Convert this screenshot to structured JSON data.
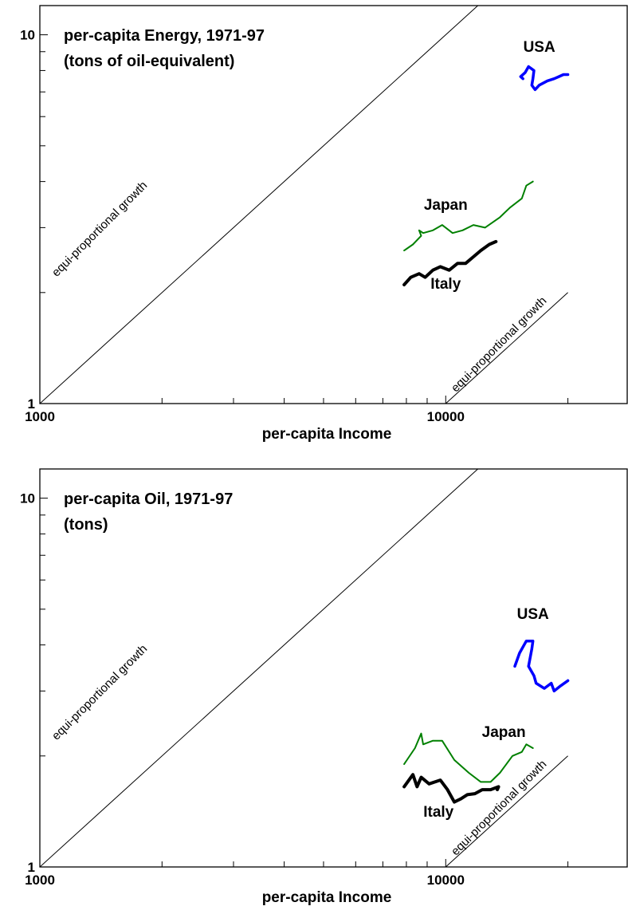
{
  "chart_data": [
    {
      "type": "line",
      "title": "per-capita Energy, 1971-97",
      "subtitle": "(tons of oil-equivalent)",
      "xlabel": "per-capita Income",
      "ylabel": "",
      "x_scale": "log",
      "y_scale": "log",
      "xlim": [
        1000,
        28000
      ],
      "ylim": [
        1,
        12
      ],
      "x_tick_labels": [
        {
          "value": 1000,
          "label": "1000"
        },
        {
          "value": 10000,
          "label": "10000"
        }
      ],
      "y_tick_labels": [
        {
          "value": 1,
          "label": "1"
        },
        {
          "value": 10,
          "label": "10"
        }
      ],
      "grid": false,
      "legend": "none",
      "series": [
        {
          "name": "USA",
          "color": "#0000ff",
          "x": [
            15500,
            15300,
            15700,
            16000,
            16500,
            16400,
            16300,
            16600,
            17000,
            17800,
            18500,
            19000,
            19500,
            20000
          ],
          "y": [
            7.6,
            7.7,
            7.9,
            8.2,
            8.0,
            7.6,
            7.3,
            7.1,
            7.3,
            7.5,
            7.6,
            7.7,
            7.8,
            7.8
          ]
        },
        {
          "name": "Japan",
          "color": "#008000",
          "x": [
            7900,
            8300,
            8700,
            8600,
            8800,
            9300,
            9800,
            10400,
            11000,
            11700,
            12500,
            13600,
            14400,
            15400,
            15800,
            16400
          ],
          "y": [
            2.6,
            2.7,
            2.85,
            2.95,
            2.9,
            2.95,
            3.05,
            2.9,
            2.95,
            3.05,
            3.0,
            3.2,
            3.4,
            3.6,
            3.9,
            4.0
          ]
        },
        {
          "name": "Italy",
          "color": "#000000",
          "x": [
            7900,
            8200,
            8600,
            8900,
            9300,
            9700,
            10200,
            10700,
            11200,
            11700,
            12200,
            12800,
            13300
          ],
          "y": [
            2.1,
            2.2,
            2.25,
            2.2,
            2.3,
            2.35,
            2.3,
            2.4,
            2.4,
            2.5,
            2.6,
            2.7,
            2.75
          ]
        }
      ],
      "annotations": [
        {
          "text": "USA",
          "x": 17000,
          "y": 9.0,
          "anchor": "middle",
          "size": 19
        },
        {
          "text": "Japan",
          "x": 10000,
          "y": 3.35,
          "anchor": "middle",
          "size": 19
        },
        {
          "text": "Italy",
          "x": 10000,
          "y": 2.05,
          "anchor": "middle",
          "size": 19
        },
        {
          "text": "equi-proportional growth",
          "x": 1100,
          "y": 2.2,
          "anchor": "start",
          "size": 15,
          "rotate": -45,
          "bold": false
        },
        {
          "text": "equi-proportional growth",
          "x": 10600,
          "y": 1.07,
          "anchor": "start",
          "size": 15,
          "rotate": -45,
          "bold": false
        }
      ],
      "reference_lines": [
        {
          "label": "equi-proportional growth",
          "x1": 1000,
          "y1": 1,
          "x2": 12000,
          "y2": 12
        },
        {
          "label": "equi-proportional growth",
          "x1": 10000,
          "y1": 1,
          "x2": 20000,
          "y2": 2
        }
      ]
    },
    {
      "type": "line",
      "title": "per-capita Oil, 1971-97",
      "subtitle": "(tons)",
      "xlabel": "per-capita Income",
      "ylabel": "",
      "x_scale": "log",
      "y_scale": "log",
      "xlim": [
        1000,
        28000
      ],
      "ylim": [
        1,
        12
      ],
      "x_tick_labels": [
        {
          "value": 1000,
          "label": "1000"
        },
        {
          "value": 10000,
          "label": "10000"
        }
      ],
      "y_tick_labels": [
        {
          "value": 1,
          "label": "1"
        },
        {
          "value": 10,
          "label": "10"
        }
      ],
      "grid": false,
      "legend": "none",
      "series": [
        {
          "name": "USA",
          "color": "#0000ff",
          "x": [
            14800,
            15200,
            15800,
            16400,
            16300,
            16000,
            16500,
            16700,
            17500,
            18200,
            18500,
            19200,
            20000
          ],
          "y": [
            3.5,
            3.8,
            4.1,
            4.1,
            3.9,
            3.5,
            3.3,
            3.15,
            3.05,
            3.15,
            3.0,
            3.1,
            3.2
          ]
        },
        {
          "name": "Japan",
          "color": "#008000",
          "x": [
            7900,
            8400,
            8700,
            8800,
            9300,
            9800,
            10500,
            11400,
            12200,
            12900,
            13600,
            14600,
            15400,
            15800,
            16400
          ],
          "y": [
            1.9,
            2.1,
            2.3,
            2.15,
            2.2,
            2.2,
            1.95,
            1.8,
            1.7,
            1.7,
            1.8,
            2.0,
            2.05,
            2.15,
            2.1
          ]
        },
        {
          "name": "Italy",
          "color": "#000000",
          "x": [
            7900,
            8300,
            8500,
            8700,
            9100,
            9700,
            10100,
            10500,
            10900,
            11300,
            11800,
            12300,
            12900,
            13500,
            13400
          ],
          "y": [
            1.65,
            1.78,
            1.65,
            1.75,
            1.68,
            1.72,
            1.62,
            1.5,
            1.53,
            1.57,
            1.58,
            1.62,
            1.62,
            1.65,
            1.62
          ]
        }
      ],
      "annotations": [
        {
          "text": "USA",
          "x": 16400,
          "y": 4.7,
          "anchor": "middle",
          "size": 19
        },
        {
          "text": "Japan",
          "x": 13900,
          "y": 2.25,
          "anchor": "middle",
          "size": 19
        },
        {
          "text": "Italy",
          "x": 9600,
          "y": 1.37,
          "anchor": "middle",
          "size": 19
        },
        {
          "text": "equi-proportional growth",
          "x": 1100,
          "y": 2.2,
          "anchor": "start",
          "size": 15,
          "rotate": -45,
          "bold": false
        },
        {
          "text": "equi-proportional growth",
          "x": 10600,
          "y": 1.07,
          "anchor": "start",
          "size": 15,
          "rotate": -45,
          "bold": false
        }
      ],
      "reference_lines": [
        {
          "label": "equi-proportional growth",
          "x1": 1000,
          "y1": 1,
          "x2": 12000,
          "y2": 12
        },
        {
          "label": "equi-proportional growth",
          "x1": 10000,
          "y1": 1,
          "x2": 20000,
          "y2": 2
        }
      ]
    }
  ]
}
